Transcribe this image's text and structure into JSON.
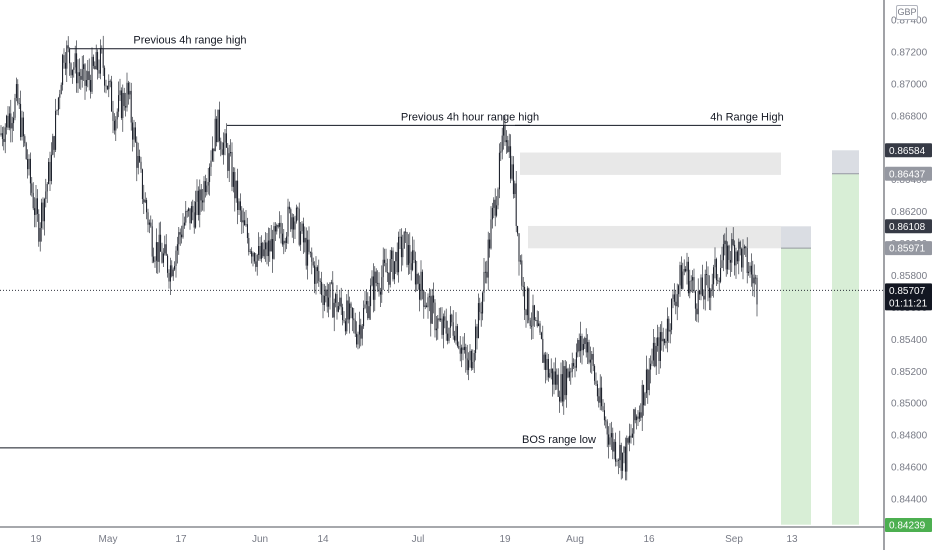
{
  "currency_label": "GBP",
  "chart_data": {
    "type": "candlestick",
    "y_axis": {
      "ticks": [
        0.874,
        0.872,
        0.87,
        0.868,
        0.866,
        0.864,
        0.862,
        0.86,
        0.858,
        0.856,
        0.854,
        0.852,
        0.85,
        0.848,
        0.846,
        0.844
      ],
      "tick_labels": [
        "0.87400",
        "0.87200",
        "0.87000",
        "0.86800",
        "0.86600",
        "0.86400",
        "0.86200",
        "0.86000",
        "0.85800",
        "0.85600",
        "0.85400",
        "0.85200",
        "0.85000",
        "0.84800",
        "0.84600",
        "0.84400"
      ],
      "range": [
        0.8421,
        0.8752
      ]
    },
    "x_axis": {
      "labels": [
        "19",
        "May",
        "17",
        "Jun",
        "14",
        "Jul",
        "19",
        "Aug",
        "16",
        "Sep",
        "13"
      ]
    },
    "price_tags": [
      {
        "label": "0.86584",
        "value": 0.86584,
        "color": "#363a45"
      },
      {
        "label": "0.86437",
        "value": 0.86437,
        "color": "#9598a1"
      },
      {
        "label": "0.86108",
        "value": 0.86108,
        "color": "#363a45"
      },
      {
        "label": "0.85971",
        "value": 0.85971,
        "color": "#9598a1"
      },
      {
        "label": "0.85707",
        "value": 0.85707,
        "color": "#131722"
      },
      {
        "label": "0.84239",
        "value": 0.84239,
        "color": "#4caf50"
      }
    ],
    "countdown": "01:11:21",
    "last_price": 0.85707,
    "annotations": [
      {
        "text": "Previous 4h range high",
        "level": 0.8722
      },
      {
        "text": "Previous 4h hour range high",
        "level": 0.8674
      },
      {
        "text": "4h Range High",
        "level": 0.8674
      },
      {
        "text": "BOS range low",
        "level": 0.8472
      }
    ],
    "zones": [
      {
        "kind": "range",
        "low": 0.8643,
        "high": 0.8657,
        "color": "#e8e8e8"
      },
      {
        "kind": "range",
        "low": 0.8597,
        "high": 0.8611,
        "color": "#e8e8e8"
      },
      {
        "kind": "position",
        "entry": 0.85971,
        "stop": 0.86108,
        "target": 0.84239
      },
      {
        "kind": "position",
        "entry": 0.86437,
        "stop": 0.86584,
        "target": 0.84239
      }
    ],
    "price_path": [
      [
        0,
        0.8668
      ],
      [
        0.02,
        0.869
      ],
      [
        0.035,
        0.864
      ],
      [
        0.045,
        0.861
      ],
      [
        0.06,
        0.865
      ],
      [
        0.075,
        0.8722
      ],
      [
        0.1,
        0.87
      ],
      [
        0.12,
        0.8715
      ],
      [
        0.135,
        0.868
      ],
      [
        0.15,
        0.8695
      ],
      [
        0.165,
        0.864
      ],
      [
        0.18,
        0.86
      ],
      [
        0.2,
        0.8585
      ],
      [
        0.215,
        0.8612
      ],
      [
        0.235,
        0.8625
      ],
      [
        0.255,
        0.8675
      ],
      [
        0.27,
        0.865
      ],
      [
        0.285,
        0.861
      ],
      [
        0.305,
        0.859
      ],
      [
        0.325,
        0.8602
      ],
      [
        0.345,
        0.862
      ],
      [
        0.36,
        0.8595
      ],
      [
        0.38,
        0.857
      ],
      [
        0.4,
        0.856
      ],
      [
        0.42,
        0.8545
      ],
      [
        0.44,
        0.8575
      ],
      [
        0.46,
        0.8585
      ],
      [
        0.475,
        0.86
      ],
      [
        0.49,
        0.858
      ],
      [
        0.505,
        0.856
      ],
      [
        0.52,
        0.8545
      ],
      [
        0.535,
        0.855
      ],
      [
        0.55,
        0.852
      ],
      [
        0.565,
        0.856
      ],
      [
        0.58,
        0.862
      ],
      [
        0.595,
        0.8675
      ],
      [
        0.605,
        0.863
      ],
      [
        0.615,
        0.857
      ],
      [
        0.63,
        0.8545
      ],
      [
        0.645,
        0.852
      ],
      [
        0.66,
        0.851
      ],
      [
        0.675,
        0.853
      ],
      [
        0.69,
        0.854
      ],
      [
        0.705,
        0.85
      ],
      [
        0.72,
        0.8475
      ],
      [
        0.735,
        0.8465
      ],
      [
        0.75,
        0.8495
      ],
      [
        0.765,
        0.8525
      ],
      [
        0.78,
        0.854
      ],
      [
        0.795,
        0.857
      ],
      [
        0.805,
        0.8585
      ],
      [
        0.82,
        0.8565
      ],
      [
        0.835,
        0.8575
      ],
      [
        0.85,
        0.859
      ],
      [
        0.865,
        0.8598
      ],
      [
        0.88,
        0.8585
      ],
      [
        0.89,
        0.8572
      ]
    ]
  }
}
